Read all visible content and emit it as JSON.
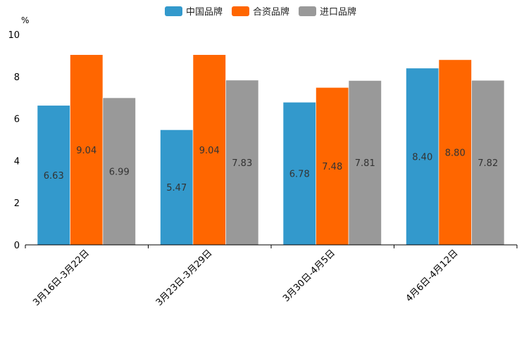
{
  "chart_data": {
    "type": "bar",
    "title": "",
    "xlabel": "",
    "ylabel": "%",
    "ylim": [
      0,
      10
    ],
    "yticks": [
      0,
      2,
      4,
      6,
      8,
      10
    ],
    "grid": false,
    "legend_position": "top-center",
    "categories": [
      "3月16日-3月22日",
      "3月23日-3月29日",
      "3月30日-4月5日",
      "4月6日-4月12日"
    ],
    "series": [
      {
        "name": "中国品牌",
        "color": "#3399cc",
        "values": [
          6.63,
          5.47,
          6.78,
          8.4
        ],
        "labels": [
          "6.63",
          "5.47",
          "6.78",
          "8.40"
        ]
      },
      {
        "name": "合资品牌",
        "color": "#ff6600",
        "values": [
          9.04,
          9.04,
          7.48,
          8.8
        ],
        "labels": [
          "9.04",
          "9.04",
          "7.48",
          "8.80"
        ]
      },
      {
        "name": "进口品牌",
        "color": "#999999",
        "values": [
          6.99,
          7.83,
          7.81,
          7.82
        ],
        "labels": [
          "6.99",
          "7.83",
          "7.81",
          "7.82"
        ]
      }
    ]
  }
}
